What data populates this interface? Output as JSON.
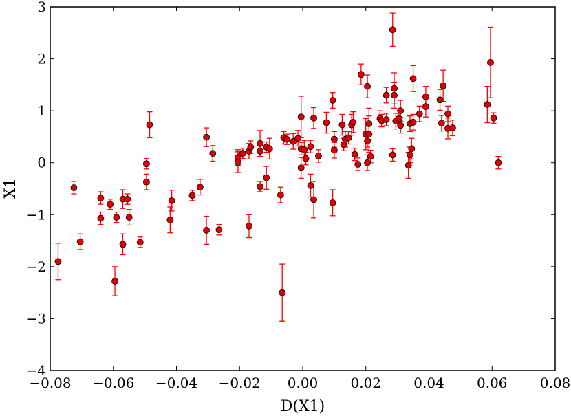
{
  "chart_data": {
    "type": "scatter",
    "title": "",
    "xlabel": "D(X1)",
    "ylabel": "X1",
    "xlim": [
      -0.08,
      0.08
    ],
    "ylim": [
      -4,
      3
    ],
    "xticks": [
      -0.08,
      -0.06,
      -0.04,
      -0.02,
      0.0,
      0.02,
      0.04,
      0.06,
      0.08
    ],
    "xtick_labels": [
      "−0.08",
      "−0.06",
      "−0.04",
      "−0.02",
      "0.00",
      "0.02",
      "0.04",
      "0.06",
      "0.08"
    ],
    "yticks": [
      -4,
      -3,
      -2,
      -1,
      0,
      1,
      2,
      3
    ],
    "ytick_labels": [
      "−4",
      "−3",
      "−2",
      "−1",
      "0",
      "1",
      "2",
      "3"
    ],
    "grid": false,
    "marker_color": "#e00000",
    "errorbar_color": "#ff0000",
    "points": [
      {
        "x": -0.0775,
        "y": -1.9,
        "err": 0.35
      },
      {
        "x": -0.0725,
        "y": -0.48,
        "err": 0.12
      },
      {
        "x": -0.0705,
        "y": -1.52,
        "err": 0.15
      },
      {
        "x": -0.064,
        "y": -0.68,
        "err": 0.12
      },
      {
        "x": -0.064,
        "y": -1.07,
        "err": 0.12
      },
      {
        "x": -0.061,
        "y": -0.8,
        "err": 0.1
      },
      {
        "x": -0.0595,
        "y": -2.28,
        "err": 0.28
      },
      {
        "x": -0.059,
        "y": -1.05,
        "err": 0.1
      },
      {
        "x": -0.057,
        "y": -0.7,
        "err": 0.18
      },
      {
        "x": -0.057,
        "y": -1.57,
        "err": 0.2
      },
      {
        "x": -0.0555,
        "y": -0.7,
        "err": 0.1
      },
      {
        "x": -0.055,
        "y": -1.05,
        "err": 0.15
      },
      {
        "x": -0.0515,
        "y": -1.53,
        "err": 0.1
      },
      {
        "x": -0.0495,
        "y": -0.02,
        "err": 0.1
      },
      {
        "x": -0.0495,
        "y": -0.37,
        "err": 0.15
      },
      {
        "x": -0.0485,
        "y": 0.73,
        "err": 0.25
      },
      {
        "x": -0.042,
        "y": -1.1,
        "err": 0.25
      },
      {
        "x": -0.0415,
        "y": -0.73,
        "err": 0.2
      },
      {
        "x": -0.035,
        "y": -0.63,
        "err": 0.1
      },
      {
        "x": -0.0325,
        "y": -0.47,
        "err": 0.15
      },
      {
        "x": -0.0305,
        "y": 0.49,
        "err": 0.18
      },
      {
        "x": -0.0305,
        "y": -1.3,
        "err": 0.27
      },
      {
        "x": -0.0285,
        "y": 0.18,
        "err": 0.15
      },
      {
        "x": -0.0265,
        "y": -1.29,
        "err": 0.1
      },
      {
        "x": -0.0205,
        "y": 0.1,
        "err": 0.15
      },
      {
        "x": -0.0205,
        "y": 0.01,
        "err": 0.2
      },
      {
        "x": -0.019,
        "y": 0.18,
        "err": 0.1
      },
      {
        "x": -0.017,
        "y": -1.22,
        "err": 0.22
      },
      {
        "x": -0.017,
        "y": 0.22,
        "err": 0.15
      },
      {
        "x": -0.0165,
        "y": 0.3,
        "err": 0.12
      },
      {
        "x": -0.0135,
        "y": 0.37,
        "err": 0.25
      },
      {
        "x": -0.0135,
        "y": -0.46,
        "err": 0.1
      },
      {
        "x": -0.0135,
        "y": 0.22,
        "err": 0.1
      },
      {
        "x": -0.0115,
        "y": 0.3,
        "err": 0.1
      },
      {
        "x": -0.0115,
        "y": -0.29,
        "err": 0.22
      },
      {
        "x": -0.0105,
        "y": 0.27,
        "err": 0.2
      },
      {
        "x": -0.007,
        "y": -0.62,
        "err": 0.15
      },
      {
        "x": -0.0065,
        "y": -2.5,
        "err": 0.55
      },
      {
        "x": -0.006,
        "y": 0.48,
        "err": 0.12
      },
      {
        "x": -0.005,
        "y": 0.45,
        "err": 0.1
      },
      {
        "x": -0.003,
        "y": 0.41,
        "err": 0.15
      },
      {
        "x": -0.0015,
        "y": 0.47,
        "err": 0.15
      },
      {
        "x": -0.0005,
        "y": 0.88,
        "err": 0.4
      },
      {
        "x": -0.0005,
        "y": -0.1,
        "err": 0.2
      },
      {
        "x": -0.0005,
        "y": 0.27,
        "err": 0.12
      },
      {
        "x": 0.0005,
        "y": 0.25,
        "err": 0.18
      },
      {
        "x": 0.001,
        "y": 0.08,
        "err": 0.12
      },
      {
        "x": 0.0025,
        "y": 0.31,
        "err": 0.12
      },
      {
        "x": 0.0025,
        "y": -0.44,
        "err": 0.22
      },
      {
        "x": 0.0035,
        "y": 0.86,
        "err": 0.2
      },
      {
        "x": 0.0035,
        "y": -0.71,
        "err": 0.35
      },
      {
        "x": 0.005,
        "y": 0.13,
        "err": 0.12
      },
      {
        "x": 0.0075,
        "y": 0.77,
        "err": 0.2
      },
      {
        "x": 0.0095,
        "y": 1.2,
        "err": 0.15
      },
      {
        "x": 0.0095,
        "y": -0.77,
        "err": 0.25
      },
      {
        "x": 0.01,
        "y": 0.45,
        "err": 0.15
      },
      {
        "x": 0.01,
        "y": 0.24,
        "err": 0.15
      },
      {
        "x": 0.0125,
        "y": 0.73,
        "err": 0.2
      },
      {
        "x": 0.013,
        "y": 0.35,
        "err": 0.12
      },
      {
        "x": 0.0135,
        "y": 0.45,
        "err": 0.15
      },
      {
        "x": 0.0145,
        "y": 0.48,
        "err": 0.12
      },
      {
        "x": 0.0155,
        "y": 0.73,
        "err": 0.2
      },
      {
        "x": 0.016,
        "y": 0.78,
        "err": 0.2
      },
      {
        "x": 0.0165,
        "y": 0.16,
        "err": 0.12
      },
      {
        "x": 0.0175,
        "y": -0.03,
        "err": 0.12
      },
      {
        "x": 0.0185,
        "y": 1.7,
        "err": 0.2
      },
      {
        "x": 0.02,
        "y": 0.55,
        "err": 0.3
      },
      {
        "x": 0.0205,
        "y": 1.47,
        "err": 0.22
      },
      {
        "x": 0.0205,
        "y": 0.42,
        "err": 0.12
      },
      {
        "x": 0.0205,
        "y": 0.0,
        "err": 0.15
      },
      {
        "x": 0.021,
        "y": 0.75,
        "err": 0.3
      },
      {
        "x": 0.021,
        "y": 0.55,
        "err": 0.35
      },
      {
        "x": 0.0215,
        "y": 0.12,
        "err": 0.12
      },
      {
        "x": 0.0245,
        "y": 0.85,
        "err": 0.15
      },
      {
        "x": 0.025,
        "y": 0.81,
        "err": 0.12
      },
      {
        "x": 0.0265,
        "y": 1.3,
        "err": 0.15
      },
      {
        "x": 0.0265,
        "y": 0.83,
        "err": 0.12
      },
      {
        "x": 0.0285,
        "y": 0.15,
        "err": 0.12
      },
      {
        "x": 0.0285,
        "y": 2.56,
        "err": 0.32
      },
      {
        "x": 0.029,
        "y": 1.43,
        "err": 0.3
      },
      {
        "x": 0.029,
        "y": 1.3,
        "err": 0.25
      },
      {
        "x": 0.0295,
        "y": 0.8,
        "err": 0.15
      },
      {
        "x": 0.0305,
        "y": 0.85,
        "err": 0.15
      },
      {
        "x": 0.031,
        "y": 1.0,
        "err": 0.2
      },
      {
        "x": 0.031,
        "y": 0.72,
        "err": 0.15
      },
      {
        "x": 0.0335,
        "y": -0.05,
        "err": 0.25
      },
      {
        "x": 0.034,
        "y": 0.75,
        "err": 0.15
      },
      {
        "x": 0.034,
        "y": 0.15,
        "err": 0.15
      },
      {
        "x": 0.0345,
        "y": 0.27,
        "err": 0.2
      },
      {
        "x": 0.035,
        "y": 1.62,
        "err": 0.25
      },
      {
        "x": 0.035,
        "y": 0.78,
        "err": 0.15
      },
      {
        "x": 0.037,
        "y": 0.94,
        "err": 0.15
      },
      {
        "x": 0.039,
        "y": 1.27,
        "err": 0.2
      },
      {
        "x": 0.039,
        "y": 1.08,
        "err": 0.2
      },
      {
        "x": 0.0435,
        "y": 1.21,
        "err": 0.2
      },
      {
        "x": 0.044,
        "y": 0.76,
        "err": 0.15
      },
      {
        "x": 0.0445,
        "y": 1.48,
        "err": 0.3
      },
      {
        "x": 0.046,
        "y": 0.94,
        "err": 0.15
      },
      {
        "x": 0.046,
        "y": 0.66,
        "err": 0.2
      },
      {
        "x": 0.0475,
        "y": 0.67,
        "err": 0.15
      },
      {
        "x": 0.0585,
        "y": 1.12,
        "err": 0.35
      },
      {
        "x": 0.0595,
        "y": 1.93,
        "err": 0.68
      },
      {
        "x": 0.0605,
        "y": 0.86,
        "err": 0.1
      },
      {
        "x": 0.062,
        "y": 0.0,
        "err": 0.12
      }
    ]
  }
}
